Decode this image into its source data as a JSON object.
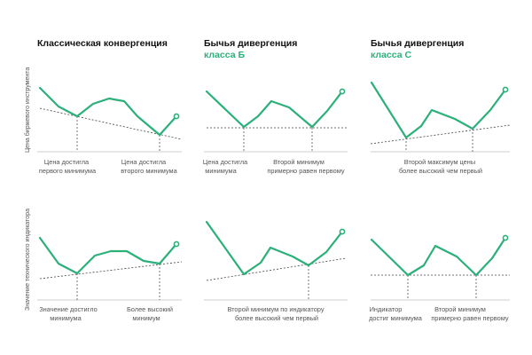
{
  "axis_labels": {
    "top": "Цена биржевого инструмента",
    "bottom": "Значение технического индикатора"
  },
  "columns": [
    {
      "title": "Классическая конвергенция",
      "subtitle": ""
    },
    {
      "title": "Бычья дивергенция",
      "subtitle": "класса Б"
    },
    {
      "title": "Бычья дивергенция",
      "subtitle": "класса С"
    }
  ],
  "annotations": {
    "r1c1_a": [
      "Цена достигла",
      "первого минимума"
    ],
    "r1c1_b": [
      "Цена достигла",
      "второго минимума"
    ],
    "r1c2_a": [
      "Цена достигла",
      "минимума"
    ],
    "r1c2_b": [
      "Второй минимум",
      "примерно равен первому"
    ],
    "r1c3_a": [
      "Второй максимум цены",
      "более высокий чем первый"
    ],
    "r2c1_a": [
      "Значение достигло",
      "минимума"
    ],
    "r2c1_b": [
      "Более высокий",
      "минимум"
    ],
    "r2c2_a": [
      "Второй минимум по индикатору",
      "более высокий чем первый"
    ],
    "r2c3_a": [
      "Индикатор",
      "достиг минимума"
    ],
    "r2c3_b": [
      "Второй минимум",
      "примерно равен первому"
    ]
  },
  "colors": {
    "accent": "#2bb07a",
    "ink": "#111111",
    "muted": "#555555"
  }
}
